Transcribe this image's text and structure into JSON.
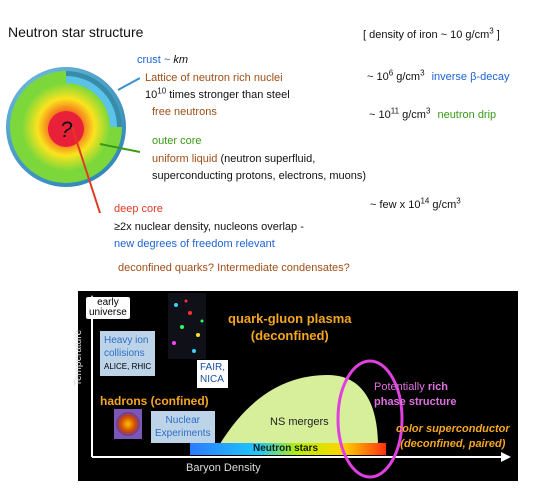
{
  "title": "Neutron star structure",
  "density_iron": {
    "prefix": "[ density of iron ~ 10 g/cm",
    "exp": "3",
    "suffix": " ]"
  },
  "crust": {
    "label": "crust ~ ",
    "unit": "km",
    "line1": "Lattice of neutron rich nuclei",
    "line2_base": "10",
    "line2_exp": "10",
    "line2_rest": " times stronger than steel",
    "line3": "free neutrons",
    "density1_base": "~ 10",
    "density1_exp": "6",
    "density1_unit": " g/cm",
    "density1_unit_exp": "3",
    "process1": "inverse β-decay",
    "density2_base": "~ 10",
    "density2_exp": "11",
    "density2_unit": " g/cm",
    "density2_unit_exp": "3",
    "process2": "neutron drip"
  },
  "outer_core": {
    "label": "outer core",
    "line1_colored": "uniform liquid",
    "line1_rest": " (neutron superfluid,",
    "line2": "superconducting protons, electrons, muons)"
  },
  "deep_core": {
    "label": "deep core",
    "density_base": "~ few x 10",
    "density_exp": "14",
    "density_unit": " g/cm",
    "density_unit_exp": "3",
    "line1": "≥2x nuclear density, nucleons overlap -",
    "line2": "new degrees of freedom relevant",
    "line3": "deconfined quarks? Intermediate condensates?"
  },
  "star": {
    "center_symbol": "?"
  },
  "phase_diagram": {
    "y_axis": "Temperature",
    "x_axis": "Baryon Density",
    "early_universe": [
      "early",
      "universe"
    ],
    "qgp": [
      "quark-gluon plasma",
      "(deconfined)"
    ],
    "heavy_ion": [
      "Heavy ion",
      "collisions"
    ],
    "heavy_ion_labs": "ALICE, RHIC",
    "fair_nica": [
      "FAIR,",
      "NICA"
    ],
    "hadrons": "hadrons (confined)",
    "nuclear_exp": [
      "Nuclear",
      "Experiments"
    ],
    "ns_mergers": "NS mergers",
    "neutron_stars": "Neutron stars",
    "rich_phase": [
      "Potentially ",
      "rich",
      "phase structure"
    ],
    "color_sc": [
      "color superconductor",
      "(deconfined, paired)"
    ],
    "colors": {
      "qgp": "#f5a623",
      "hadrons": "#f5a623",
      "rich": "#e070e0",
      "mergers_fill": "#d7ef9a",
      "ellipse": "#e040e0"
    }
  }
}
